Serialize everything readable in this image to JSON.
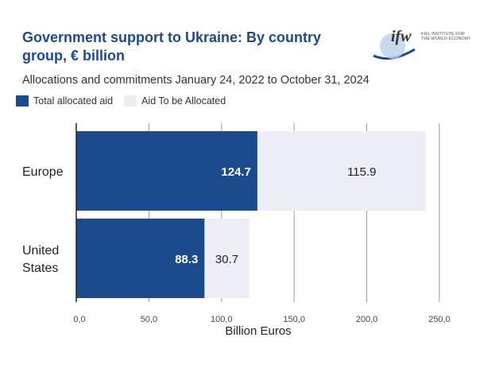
{
  "title": "Government support to Ukraine: By country group, € billion",
  "subtitle": "Allocations and commitments January 24, 2022 to October 31, 2024",
  "logo_text": "ifw KIEL INSTITUTE FOR THE WORLD ECONOMY",
  "colors": {
    "allocated": "#1b4b8c",
    "to_allocate": "#edeef5"
  },
  "chart_data": {
    "type": "bar",
    "orientation": "horizontal",
    "stacked": true,
    "categories": [
      [
        "Europe"
      ],
      [
        "United",
        "States"
      ]
    ],
    "series": [
      {
        "name": "Total allocated aid",
        "values": [
          124.7,
          88.3
        ],
        "labels": [
          "124.7",
          "88.3"
        ]
      },
      {
        "name": "Aid To be Allocated",
        "values": [
          115.9,
          30.7
        ],
        "labels": [
          "115.9",
          "30.7"
        ]
      }
    ],
    "xlabel": "Billion Euros",
    "xlim": [
      0,
      250
    ],
    "ticks": [
      0,
      50,
      100,
      150,
      200,
      250
    ],
    "tick_labels": [
      "0,0",
      "50,0",
      "100,0",
      "150,0",
      "200,0",
      "250,0"
    ],
    "grid": true,
    "legend": "top-left"
  }
}
